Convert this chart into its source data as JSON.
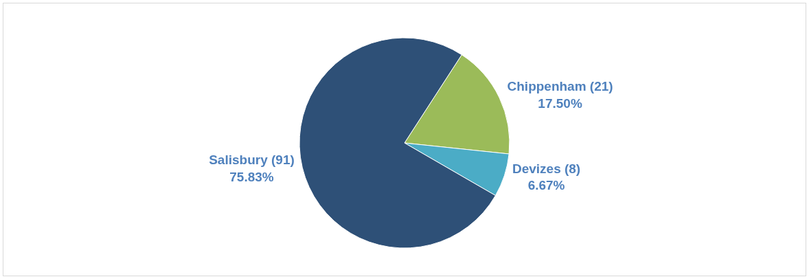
{
  "chart_data": {
    "type": "pie",
    "categories": [
      "Chippenham (21)",
      "Devizes (8)",
      "Salisbury (91)"
    ],
    "values": [
      17.5,
      6.67,
      75.83
    ],
    "colors": [
      "#9bbb59",
      "#4bacc6",
      "#2e5077"
    ],
    "value_labels": [
      "17.50%",
      "6.67%",
      "75.83%"
    ],
    "legend": false
  }
}
